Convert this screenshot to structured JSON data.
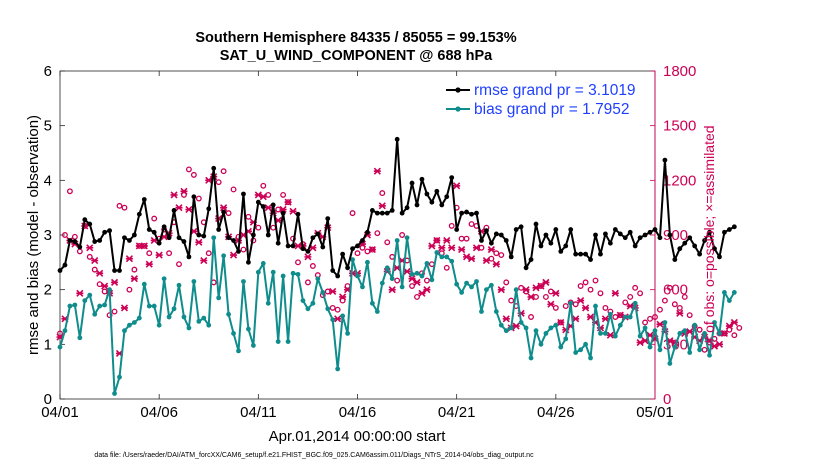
{
  "chart_data": {
    "type": "line",
    "title": "Southern Hemisphere 84335 / 85055 = 99.153%",
    "subtitle": "SAT_U_WIND_COMPONENT @ 688 hPa",
    "xlabel": "Apr.01,2014 00:00:00 start",
    "ylabel": "rmse and bias (model - observation)",
    "ylabel_right": "# of obs: o=possible; ×=assimilated",
    "x_start": 1,
    "x_step_days": 0.25,
    "xlim": [
      1,
      31
    ],
    "ylim": [
      0,
      6
    ],
    "ylim_right": [
      0,
      1800
    ],
    "xticks": [
      {
        "value": 1,
        "label": "04/01"
      },
      {
        "value": 6,
        "label": "04/06"
      },
      {
        "value": 11,
        "label": "04/11"
      },
      {
        "value": 16,
        "label": "04/16"
      },
      {
        "value": 21,
        "label": "04/21"
      },
      {
        "value": 26,
        "label": "04/26"
      },
      {
        "value": 31,
        "label": "05/01"
      }
    ],
    "yticks": [
      0,
      1,
      2,
      3,
      4,
      5,
      6
    ],
    "yticks_right": [
      0,
      300,
      600,
      900,
      1200,
      1500,
      1800
    ],
    "series": [
      {
        "name": "rmse grand pr = 3.1019",
        "color": "#000000",
        "axis": "left",
        "values": [
          2.35,
          2.45,
          2.9,
          2.88,
          2.78,
          3.28,
          3.2,
          2.88,
          2.9,
          3.05,
          3.08,
          2.35,
          2.35,
          2.95,
          2.9,
          3.0,
          3.38,
          3.65,
          3.1,
          3.05,
          2.85,
          3.15,
          2.95,
          3.45,
          2.95,
          2.88,
          2.6,
          3.7,
          3.0,
          2.98,
          3.48,
          4.22,
          3.1,
          3.42,
          2.95,
          2.9,
          2.7,
          3.75,
          2.5,
          3.0,
          3.6,
          3.52,
          3.0,
          3.55,
          2.85,
          3.4,
          2.8,
          2.8,
          3.38,
          2.75,
          2.7,
          2.95,
          3.02,
          2.78,
          3.3,
          2.35,
          2.25,
          2.65,
          2.4,
          2.75,
          2.8,
          2.9,
          3.05,
          3.45,
          3.4,
          3.4,
          3.4,
          3.45,
          4.75,
          3.4,
          3.5,
          3.95,
          3.55,
          4.02,
          3.75,
          3.6,
          3.8,
          3.55,
          3.7,
          4.05,
          3.1,
          3.4,
          3.42,
          3.38,
          3.4,
          2.9,
          3.08,
          2.85,
          3.02,
          3.0,
          2.9,
          2.6,
          3.1,
          3.15,
          2.4,
          2.55,
          3.2,
          2.8,
          3.0,
          2.85,
          3.1,
          2.7,
          2.8,
          3.1,
          2.65,
          2.65,
          2.65,
          2.55,
          3.0,
          2.65,
          3.02,
          2.85,
          3.1,
          3.02,
          2.95,
          3.05,
          2.8,
          2.95,
          3.0,
          3.05,
          3.1,
          2.95,
          4.37,
          3.0,
          2.55,
          2.75,
          2.85,
          2.95,
          2.8,
          2.65,
          2.9,
          3.05,
          2.75,
          2.6,
          3.05,
          3.1,
          3.15
        ]
      },
      {
        "name": "bias grand pr = 1.7952",
        "color": "#0f8c8c",
        "axis": "left",
        "values": [
          0.95,
          1.25,
          1.7,
          1.72,
          1.12,
          1.8,
          1.9,
          1.55,
          1.7,
          1.72,
          2.0,
          0.1,
          0.4,
          1.25,
          1.35,
          1.4,
          1.48,
          2.1,
          1.7,
          1.7,
          1.35,
          2.2,
          1.5,
          1.65,
          2.08,
          1.5,
          1.3,
          2.15,
          1.42,
          1.48,
          1.35,
          2.95,
          1.85,
          2.62,
          1.55,
          1.2,
          0.88,
          2.15,
          1.28,
          0.98,
          2.32,
          2.48,
          1.75,
          2.32,
          1.05,
          2.25,
          1.05,
          2.3,
          2.28,
          1.8,
          1.65,
          1.75,
          2.2,
          1.95,
          1.65,
          1.45,
          0.55,
          1.52,
          1.2,
          2.55,
          2.25,
          2.05,
          2.5,
          1.75,
          1.6,
          2.12,
          2.4,
          2.2,
          2.9,
          2.05,
          2.95,
          2.28,
          2.3,
          2.25,
          2.48,
          2.18,
          2.68,
          2.6,
          2.6,
          2.52,
          2.1,
          1.95,
          2.12,
          2.05,
          2.15,
          1.6,
          2.0,
          2.08,
          1.6,
          1.35,
          1.25,
          1.3,
          2.0,
          1.4,
          1.3,
          0.75,
          1.25,
          1.0,
          1.2,
          1.3,
          1.35,
          0.95,
          1.1,
          1.75,
          0.85,
          0.9,
          1.0,
          0.75,
          1.7,
          1.2,
          1.2,
          1.55,
          1.15,
          1.35,
          1.5,
          1.5,
          1.75,
          1.15,
          1.3,
          0.95,
          1.25,
          0.9,
          1.4,
          0.65,
          0.95,
          1.2,
          1.25,
          0.85,
          1.35,
          0.9,
          1.2,
          0.8,
          1.4,
          1.2,
          1.95,
          1.8,
          1.95
        ]
      },
      {
        "name": "possible",
        "color": "#cc0055",
        "axis": "right",
        "marker": "o",
        "values": [
          360,
          900,
          1140,
          890,
          810,
          950,
          780,
          710,
          630,
          590,
          460,
          480,
          1060,
          1050,
          600,
          710,
          840,
          840,
          800,
          990,
          880,
          930,
          800,
          970,
          740,
          1120,
          1260,
          1230,
          1100,
          970,
          800,
          640,
          1190,
          1250,
          1020,
          1150,
          890,
          820,
          1000,
          870,
          940,
          1170,
          1120,
          940,
          1040,
          1120,
          1080,
          880,
          750,
          850,
          640,
          730,
          680,
          570,
          590,
          500,
          490,
          540,
          620,
          1020,
          800,
          830,
          810,
          820,
          910,
          1130,
          860,
          780,
          650,
          900,
          760,
          620,
          560,
          690,
          650,
          740,
          870,
          800,
          720,
          950,
          1050,
          880,
          880,
          960,
          950,
          830,
          940,
          770,
          800,
          790,
          640,
          540,
          510,
          610,
          590,
          450,
          560,
          620,
          560,
          590,
          500,
          420,
          510,
          530,
          520,
          620,
          640,
          600,
          650,
          580,
          500,
          480,
          450,
          460,
          530,
          560,
          610,
          580,
          420,
          440,
          450,
          490,
          540,
          610,
          520,
          500,
          560,
          460,
          400,
          380,
          270,
          310,
          330,
          360,
          360,
          380,
          350,
          390
        ]
      },
      {
        "name": "assimilated",
        "color": "#cc0055",
        "axis": "right",
        "marker": "x",
        "values": [
          340,
          440,
          870,
          850,
          580,
          950,
          830,
          760,
          690,
          620,
          580,
          640,
          250,
          500,
          770,
          660,
          840,
          840,
          740,
          870,
          790,
          890,
          910,
          1120,
          1050,
          1140,
          1040,
          920,
          860,
          760,
          1200,
          1220,
          990,
          1050,
          890,
          790,
          870,
          900,
          920,
          970,
          1120,
          1110,
          1050,
          1020,
          980,
          1040,
          1080,
          1030,
          840,
          840,
          780,
          830,
          910,
          890,
          940,
          590,
          440,
          560,
          600,
          690,
          690,
          850,
          900,
          820,
          1250,
          1060,
          700,
          600,
          720,
          760,
          700,
          660,
          640,
          580,
          600,
          840,
          870,
          830,
          870,
          830,
          1170,
          820,
          780,
          770,
          830,
          920,
          760,
          820,
          740,
          600,
          440,
          390,
          400,
          470,
          600,
          560,
          610,
          620,
          640,
          520,
          580,
          420,
          380,
          400,
          440,
          540,
          500,
          450,
          420,
          390,
          440,
          350,
          580,
          460,
          450,
          510,
          500,
          310,
          320,
          350,
          330,
          410,
          370,
          320,
          310,
          470,
          360,
          370,
          340,
          320,
          340,
          320,
          290,
          300,
          360,
          400,
          420
        ]
      }
    ],
    "legend": [
      "rmse grand pr = 3.1019",
      "bias grand pr = 1.7952"
    ],
    "legend_position": "top-right"
  },
  "footer": {
    "datafile": "data file: /Users/raeder/DAI/ATM_forcXX/CAM6_setup/f.e21.FHIST_BGC.f09_025.CAM6assim.011/Diags_NTrS_2014-04/obs_diag_output.nc"
  }
}
